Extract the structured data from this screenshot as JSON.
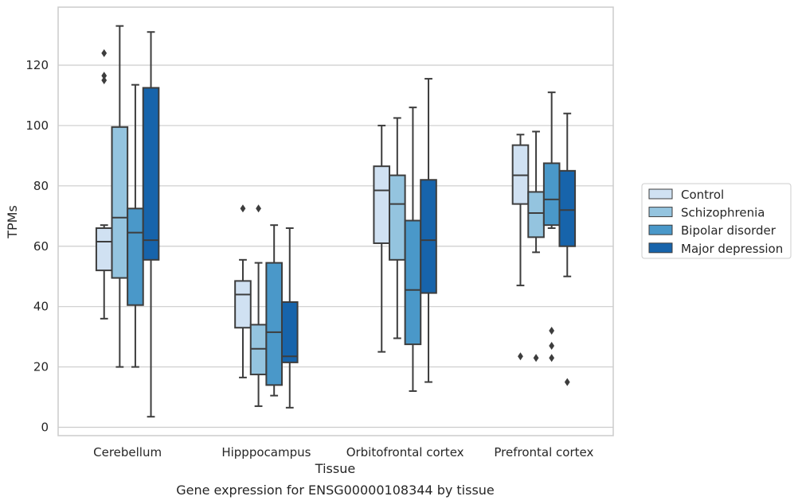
{
  "chart_data": {
    "type": "box",
    "caption": "Gene expression for ENSG00000108344 by tissue",
    "xlabel": "Tissue",
    "ylabel": "TPMs",
    "ylim": [
      -2.5,
      139
    ],
    "yticks": [
      0,
      20,
      40,
      60,
      80,
      100,
      120
    ],
    "grid": true,
    "legend_position": "right",
    "categories": [
      "Cerebellum",
      "Hipppocampus",
      "Orbitofrontal cortex",
      "Prefrontal cortex"
    ],
    "series": [
      {
        "name": "Control",
        "color": "#d0e1f2",
        "boxes": [
          {
            "whislo": 36,
            "q1": 52,
            "med": 61.5,
            "q3": 66,
            "whishi": 67,
            "fliers": [
              124,
              116.5,
              115
            ]
          },
          {
            "whislo": 16.5,
            "q1": 33,
            "med": 44,
            "q3": 48.5,
            "whishi": 55.5,
            "fliers": [
              72.5
            ]
          },
          {
            "whislo": 25,
            "q1": 61,
            "med": 78.5,
            "q3": 86.5,
            "whishi": 100,
            "fliers": []
          },
          {
            "whislo": 47,
            "q1": 74,
            "med": 83.5,
            "q3": 93.5,
            "whishi": 97,
            "fliers": [
              23.5
            ]
          }
        ]
      },
      {
        "name": "Schizophrenia",
        "color": "#94c4df",
        "boxes": [
          {
            "whislo": 20,
            "q1": 49.5,
            "med": 69.5,
            "q3": 99.5,
            "whishi": 133,
            "fliers": []
          },
          {
            "whislo": 7,
            "q1": 17.5,
            "med": 26,
            "q3": 34,
            "whishi": 54.5,
            "fliers": [
              72.5
            ]
          },
          {
            "whislo": 29.5,
            "q1": 55.5,
            "med": 74,
            "q3": 83.5,
            "whishi": 102.5,
            "fliers": []
          },
          {
            "whislo": 58,
            "q1": 63,
            "med": 71,
            "q3": 78,
            "whishi": 98,
            "fliers": [
              23
            ]
          }
        ]
      },
      {
        "name": "Bipolar disorder",
        "color": "#4a98c9",
        "boxes": [
          {
            "whislo": 20,
            "q1": 40.5,
            "med": 64.5,
            "q3": 72.5,
            "whishi": 113.5,
            "fliers": []
          },
          {
            "whislo": 10.5,
            "q1": 14,
            "med": 31.5,
            "q3": 54.5,
            "whishi": 67,
            "fliers": []
          },
          {
            "whislo": 12,
            "q1": 27.5,
            "med": 45.5,
            "q3": 68.5,
            "whishi": 106,
            "fliers": []
          },
          {
            "whislo": 66,
            "q1": 67,
            "med": 75.5,
            "q3": 87.5,
            "whishi": 111,
            "fliers": [
              32,
              27,
              23
            ]
          }
        ]
      },
      {
        "name": "Major depression",
        "color": "#1764ab",
        "boxes": [
          {
            "whislo": 3.5,
            "q1": 55.5,
            "med": 62,
            "q3": 112.5,
            "whishi": 131,
            "fliers": []
          },
          {
            "whislo": 6.5,
            "q1": 21.5,
            "med": 23.5,
            "q3": 41.5,
            "whishi": 66,
            "fliers": []
          },
          {
            "whislo": 15,
            "q1": 44.5,
            "med": 62,
            "q3": 82,
            "whishi": 115.5,
            "fliers": []
          },
          {
            "whislo": 50,
            "q1": 60,
            "med": 72,
            "q3": 85,
            "whishi": 104,
            "fliers": [
              15
            ]
          }
        ]
      }
    ]
  }
}
